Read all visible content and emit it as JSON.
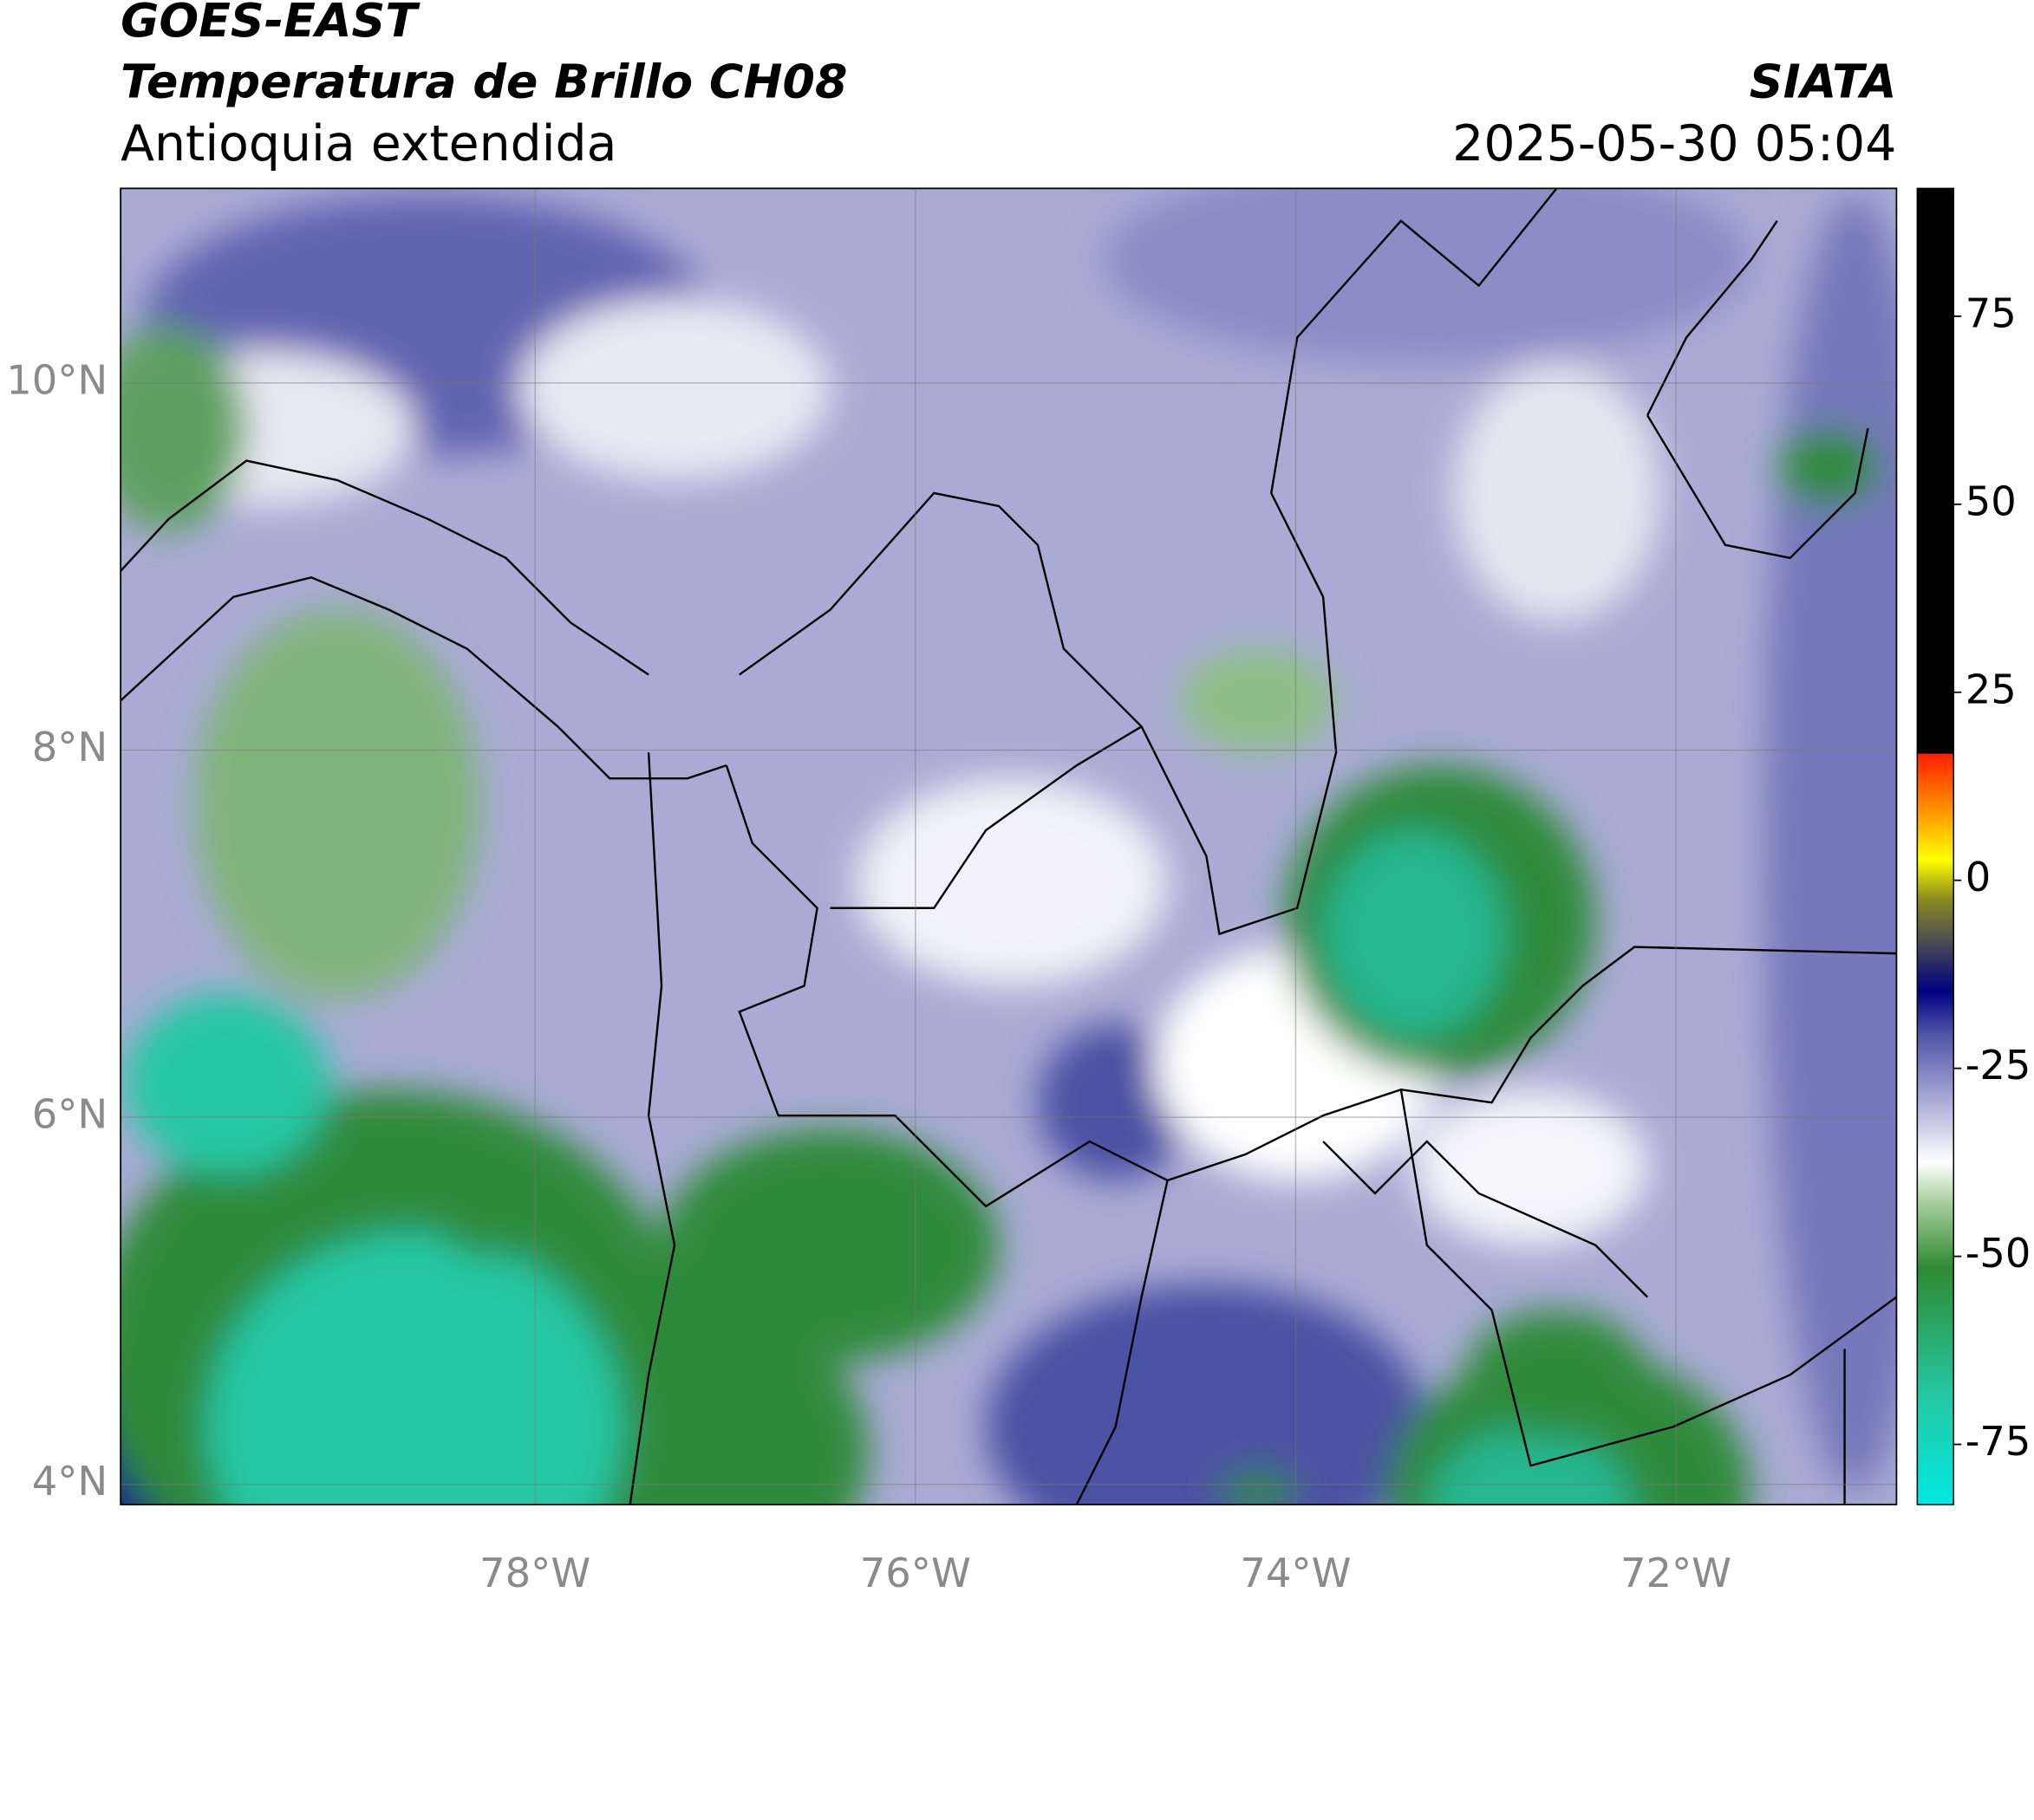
{
  "header": {
    "line1": "GOES-EAST",
    "line2": "Temperatura de Brillo CH08",
    "line3": "Antioquia extendida",
    "right1": "SIATA",
    "right2": "2025-05-30 05:04"
  },
  "map": {
    "xlim": [
      -80.18,
      -70.84
    ],
    "ylim": [
      3.89,
      11.06
    ],
    "xticks": [
      {
        "value": -78,
        "label": "78°W"
      },
      {
        "value": -76,
        "label": "76°W"
      },
      {
        "value": -74,
        "label": "74°W"
      },
      {
        "value": -72,
        "label": "72°W"
      }
    ],
    "yticks": [
      {
        "value": 10,
        "label": "10°N"
      },
      {
        "value": 8,
        "label": "8°N"
      },
      {
        "value": 6,
        "label": "6°N"
      },
      {
        "value": 4,
        "label": "4°N"
      }
    ],
    "grid": true
  },
  "colorbar": {
    "ylim": [
      -83,
      92
    ],
    "yticks": [
      75,
      50,
      25,
      0,
      -25,
      -50,
      -75
    ]
  }
}
